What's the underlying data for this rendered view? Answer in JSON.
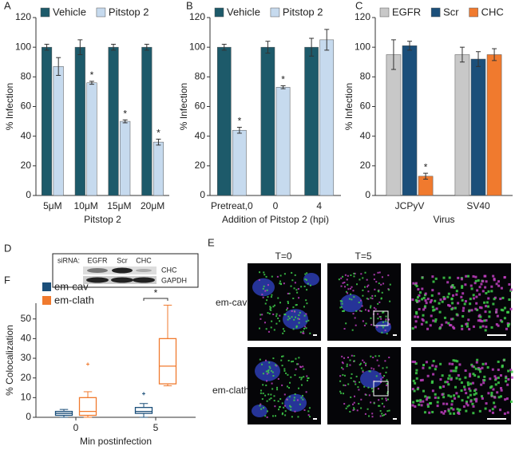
{
  "chart_data": [
    {
      "type": "bar",
      "panel": "A",
      "ylabel": "% Infection",
      "xlabel": "Pitstop 2",
      "categories": [
        "5μM",
        "10μM",
        "15μM",
        "20μM"
      ],
      "series": [
        {
          "name": "Vehicle",
          "color": "#1d5a6a",
          "values": [
            100,
            100,
            100,
            100
          ],
          "errors": [
            2,
            5,
            2,
            2
          ],
          "markers": [
            null,
            null,
            null,
            null
          ]
        },
        {
          "name": "Pitstop 2",
          "color": "#c6daee",
          "values": [
            87,
            76,
            50,
            36
          ],
          "errors": [
            6,
            1,
            1,
            2
          ],
          "markers": [
            null,
            "*",
            "*",
            "*"
          ]
        }
      ],
      "ylim": [
        0,
        120
      ],
      "yticks": [
        0,
        20,
        40,
        60,
        80,
        100,
        120
      ],
      "legend": "top"
    },
    {
      "type": "bar",
      "panel": "B",
      "ylabel": "% Infection",
      "xlabel": "Addition of Pitstop 2 (hpi)",
      "categories": [
        "Pretreat,0",
        "0",
        "4"
      ],
      "series": [
        {
          "name": "Vehicle",
          "color": "#1d5a6a",
          "values": [
            100,
            100,
            100
          ],
          "errors": [
            2,
            4,
            6
          ],
          "markers": [
            null,
            null,
            null
          ]
        },
        {
          "name": "Pitstop 2",
          "color": "#c6daee",
          "values": [
            44,
            73,
            105
          ],
          "errors": [
            2,
            1,
            7
          ],
          "markers": [
            "*",
            "*",
            null
          ]
        }
      ],
      "ylim": [
        0,
        120
      ],
      "yticks": [
        0,
        20,
        40,
        60,
        80,
        100,
        120
      ],
      "legend": "top"
    },
    {
      "type": "bar",
      "panel": "C",
      "ylabel": "% Infection",
      "xlabel": "Virus",
      "categories": [
        "JCPyV",
        "SV40"
      ],
      "series": [
        {
          "name": "EGFR",
          "color": "#c8c8c8",
          "values": [
            95,
            95
          ],
          "errors": [
            10,
            5
          ],
          "markers": [
            null,
            null
          ]
        },
        {
          "name": "Scr",
          "color": "#1b4f7a",
          "values": [
            101,
            92
          ],
          "errors": [
            3,
            5
          ],
          "markers": [
            null,
            null
          ]
        },
        {
          "name": "CHC",
          "color": "#f07a2e",
          "values": [
            13,
            95
          ],
          "errors": [
            2,
            4
          ],
          "markers": [
            "*",
            null
          ]
        }
      ],
      "ylim": [
        0,
        120
      ],
      "yticks": [
        0,
        20,
        40,
        60,
        80,
        100,
        120
      ],
      "legend": "top"
    },
    {
      "type": "box",
      "panel": "F",
      "ylabel": "% Colocalization",
      "xlabel": "Min postinfection",
      "categories": [
        "0",
        "5"
      ],
      "series": [
        {
          "name": "em-cav",
          "color": "#1b4f7a",
          "min": [
            0,
            0
          ],
          "q1": [
            1,
            2
          ],
          "median": [
            2,
            3
          ],
          "q3": [
            3,
            5
          ],
          "max": [
            4,
            7
          ],
          "outliers": [
            [],
            [
              12
            ]
          ]
        },
        {
          "name": "em-clath",
          "color": "#f07a2e",
          "min": [
            0,
            16
          ],
          "q1": [
            1,
            17
          ],
          "median": [
            3,
            26
          ],
          "q3": [
            10,
            40
          ],
          "max": [
            13,
            57
          ],
          "outliers": [
            [
              27
            ],
            []
          ]
        }
      ],
      "significance": "*",
      "ylim": [
        0,
        58
      ],
      "yticks": [
        0,
        10,
        20,
        30,
        40,
        50
      ],
      "legend": "top-left"
    }
  ],
  "blot": {
    "panel": "D",
    "label": "siRNA:",
    "lanes": [
      "EGFR",
      "Scr",
      "CHC"
    ],
    "bands": [
      "CHC",
      "GAPDH"
    ]
  },
  "microscopy": {
    "panel": "E",
    "columns": [
      "T=0",
      "T=5"
    ],
    "rows": [
      "em-cav",
      "em-clath"
    ]
  }
}
